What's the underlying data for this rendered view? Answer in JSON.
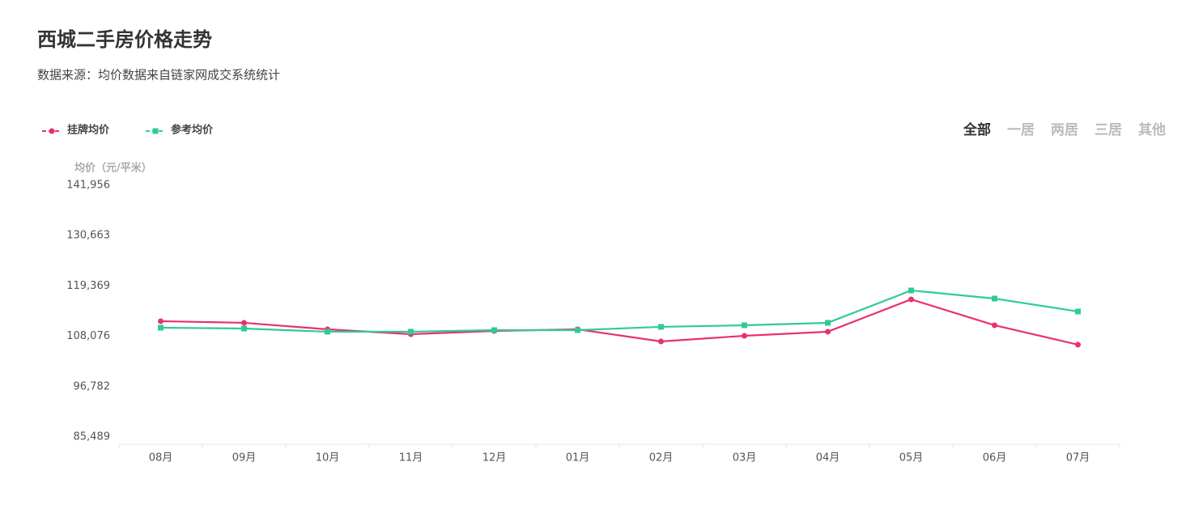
{
  "chart_data": {
    "type": "line",
    "title": "西城二手房价格走势",
    "subtitle": "数据来源：均价数据来自链家网成交系统统计",
    "y_label": "均价（元/平米）",
    "tabs": [
      "全部",
      "一居",
      "两居",
      "三居",
      "其他"
    ],
    "categories": [
      "08月",
      "09月",
      "10月",
      "11月",
      "12月",
      "01月",
      "02月",
      "03月",
      "04月",
      "05月",
      "06月",
      "07月"
    ],
    "series": [
      {
        "name": "挂牌均价",
        "color": "#e8316e",
        "marker": "circle",
        "values": [
          111460,
          111100,
          109640,
          108550,
          109280,
          109640,
          106920,
          108190,
          109100,
          116360,
          110550,
          106190
        ]
      },
      {
        "name": "参考均价",
        "color": "#2fcb93",
        "marker": "square",
        "values": [
          110000,
          109820,
          109100,
          109100,
          109460,
          109460,
          110190,
          110550,
          111100,
          118360,
          116540,
          113640
        ]
      }
    ],
    "ylim": [
      85489,
      141956
    ],
    "yticks": [
      {
        "value": 85489,
        "label": "85,489"
      },
      {
        "value": 96782,
        "label": "96,782"
      },
      {
        "value": 108076,
        "label": "108,076"
      },
      {
        "value": 119369,
        "label": "119,369"
      },
      {
        "value": 130663,
        "label": "130,663"
      },
      {
        "value": 141956,
        "label": "141,956"
      }
    ],
    "grid": false
  }
}
